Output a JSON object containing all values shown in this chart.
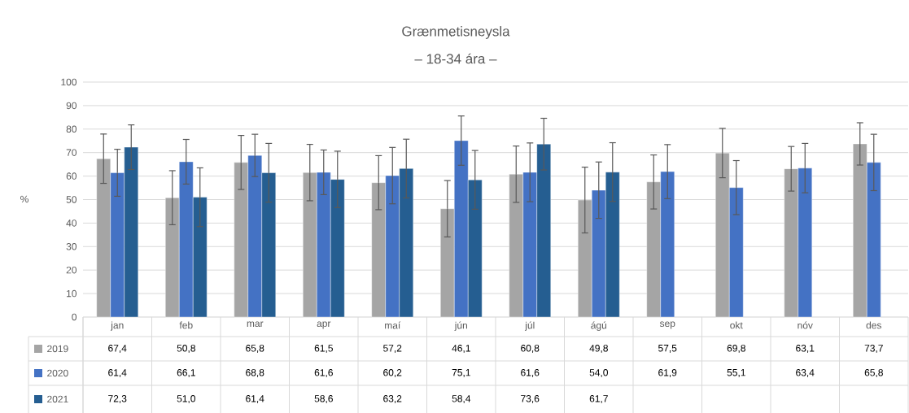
{
  "chart_data": {
    "type": "bar",
    "title": "Grænmetisneysla",
    "subtitle": "– 18-34 ára –",
    "ylabel": "%",
    "categories": [
      "jan",
      "feb",
      "mar",
      "apr",
      "maí",
      "jún",
      "júl",
      "ágú",
      "sep",
      "okt",
      "nóv",
      "des"
    ],
    "series": [
      {
        "name": "2019",
        "color": "#a5a5a5",
        "values": [
          67.4,
          50.8,
          65.8,
          61.5,
          57.2,
          46.1,
          60.8,
          49.8,
          57.5,
          69.8,
          63.1,
          73.7
        ],
        "errors": [
          10.5,
          11.5,
          11.5,
          12,
          11.5,
          12,
          12,
          14,
          11.5,
          10.5,
          9.5,
          9
        ],
        "value_labels": [
          "67,4",
          "50,8",
          "65,8",
          "61,5",
          "57,2",
          "46,1",
          "60,8",
          "49,8",
          "57,5",
          "69,8",
          "63,1",
          "73,7"
        ]
      },
      {
        "name": "2020",
        "color": "#4472c4",
        "values": [
          61.4,
          66.1,
          68.8,
          61.6,
          60.2,
          75.1,
          61.6,
          54.0,
          61.9,
          55.1,
          63.4,
          65.8
        ],
        "errors": [
          10,
          9.5,
          9,
          9.5,
          12,
          10.5,
          12.5,
          12,
          11.5,
          11.5,
          10.5,
          12
        ],
        "value_labels": [
          "61,4",
          "66,1",
          "68,8",
          "61,6",
          "60,2",
          "75,1",
          "61,6",
          "54,0",
          "61,9",
          "55,1",
          "63,4",
          "65,8"
        ]
      },
      {
        "name": "2021",
        "color": "#255e91",
        "values": [
          72.3,
          51.0,
          61.4,
          58.6,
          63.2,
          58.4,
          73.6,
          61.7,
          null,
          null,
          null,
          null
        ],
        "errors": [
          9.5,
          12.5,
          12.5,
          12,
          12.5,
          12.5,
          11,
          12.5,
          null,
          null,
          null,
          null
        ],
        "value_labels": [
          "72,3",
          "51,0",
          "61,4",
          "58,6",
          "63,2",
          "58,4",
          "73,6",
          "61,7",
          null,
          null,
          null,
          null
        ]
      }
    ],
    "ylim": [
      0,
      100
    ],
    "yticks": [
      0,
      10,
      20,
      30,
      40,
      50,
      60,
      70,
      80,
      90,
      100
    ],
    "grid": "y",
    "legend": "bottom"
  }
}
